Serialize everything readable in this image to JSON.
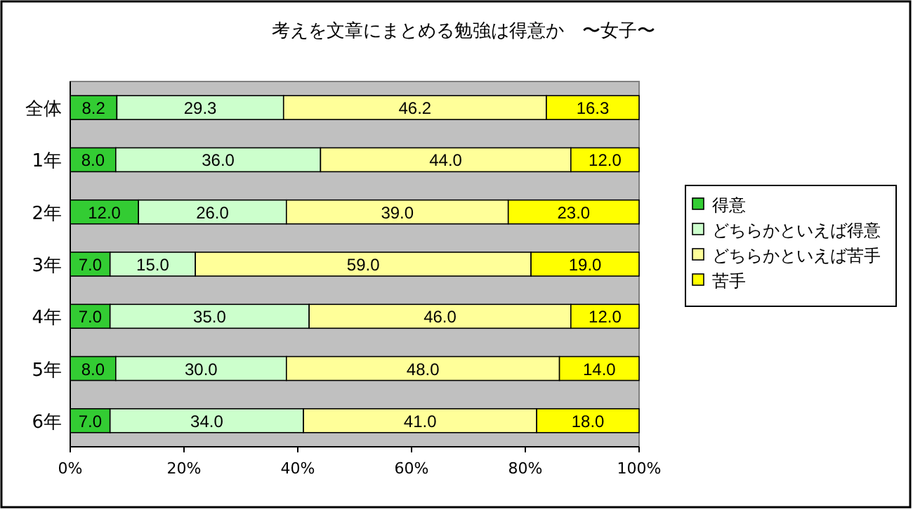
{
  "chart_data": {
    "type": "bar",
    "orientation": "horizontal",
    "stacked": true,
    "title": "考えを文章にまとめる勉強は得意か　〜女子〜",
    "categories": [
      "全体",
      "1年",
      "2年",
      "3年",
      "4年",
      "5年",
      "6年"
    ],
    "series": [
      {
        "name": "得意",
        "color": "#33cc33",
        "values": [
          8.2,
          8.0,
          12.0,
          7.0,
          7.0,
          8.0,
          7.0
        ],
        "value_labels": [
          "8.2",
          "8.0",
          "12.0",
          "7.0",
          "7.0",
          "8.0",
          "7.0"
        ]
      },
      {
        "name": "どちらかといえば得意",
        "color": "#ccffcc",
        "values": [
          29.3,
          36.0,
          26.0,
          15.0,
          35.0,
          30.0,
          34.0
        ],
        "value_labels": [
          "29.3",
          "36.0",
          "26.0",
          "15.0",
          "35.0",
          "30.0",
          "34.0"
        ]
      },
      {
        "name": "どちらかといえば苦手",
        "color": "#ffff99",
        "values": [
          46.2,
          44.0,
          39.0,
          59.0,
          46.0,
          48.0,
          41.0
        ],
        "value_labels": [
          "46.2",
          "44.0",
          "39.0",
          "59.0",
          "46.0",
          "48.0",
          "41.0"
        ]
      },
      {
        "name": "苦手",
        "color": "#ffff00",
        "values": [
          16.3,
          12.0,
          23.0,
          19.0,
          12.0,
          14.0,
          18.0
        ],
        "value_labels": [
          "16.3",
          "12.0",
          "23.0",
          "19.0",
          "12.0",
          "14.0",
          "18.0"
        ]
      }
    ],
    "xlim": [
      0,
      100
    ],
    "xticks": [
      {
        "value": 0,
        "label": "0%"
      },
      {
        "value": 20,
        "label": "20%"
      },
      {
        "value": 40,
        "label": "40%"
      },
      {
        "value": 60,
        "label": "60%"
      },
      {
        "value": 80,
        "label": "80%"
      },
      {
        "value": 100,
        "label": "100%"
      }
    ],
    "legend": "right"
  }
}
